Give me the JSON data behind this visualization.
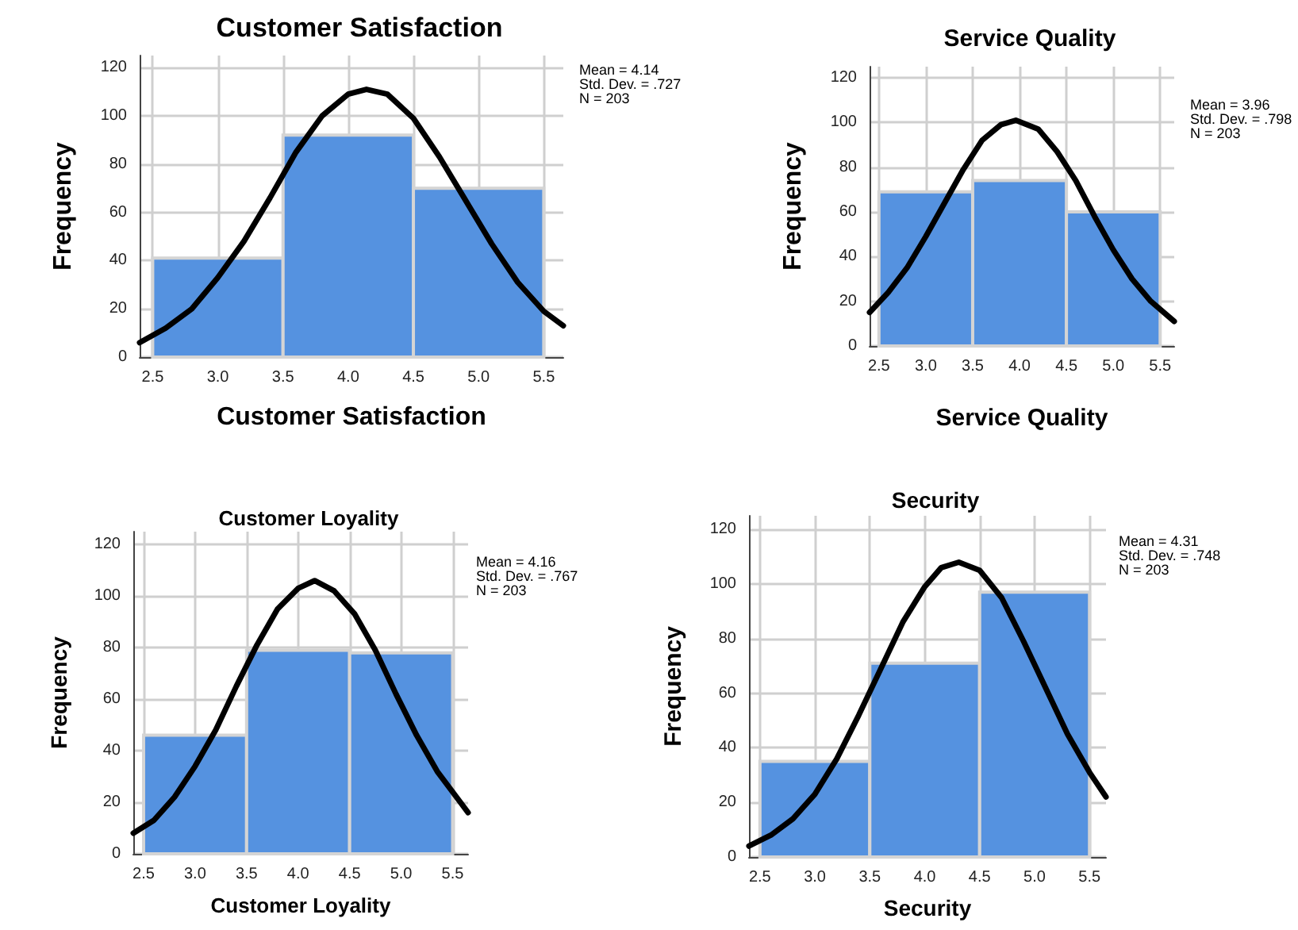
{
  "chart_data": [
    {
      "type": "histogram",
      "title": "Customer Satisfaction",
      "xlabel": "Customer Satisfaction",
      "ylabel": "Frequency",
      "bins": [
        2.5,
        3.5,
        4.5,
        5.5
      ],
      "xlim": [
        2.4,
        5.65
      ],
      "ylim": [
        0,
        125
      ],
      "xticks": [
        2.5,
        {
          "value": 3,
          "label": "3.0"
        },
        3.5,
        {
          "value": 4,
          "label": "4.0"
        },
        4.5,
        {
          "value": 5,
          "label": "5.0"
        },
        5.5
      ],
      "yticks": [
        0,
        20,
        40,
        60,
        80,
        100,
        120
      ],
      "grid": true,
      "marker": "none",
      "annotations": [
        "Mean = 4.14",
        "Std. Dev. = .727",
        "N = 203"
      ],
      "series": [
        {
          "color": "#5592e0",
          "values": [
            41,
            92,
            70
          ]
        },
        {
          "type": "line",
          "color": "#000000",
          "x": [
            2.4,
            2.6,
            2.8,
            3.0,
            3.2,
            3.4,
            3.6,
            3.8,
            4.0,
            4.14,
            4.3,
            4.5,
            4.7,
            4.9,
            5.1,
            5.3,
            5.5,
            5.65
          ],
          "values": [
            6,
            12,
            20,
            33,
            48,
            66,
            85,
            100,
            109,
            111,
            109,
            99,
            83,
            65,
            47,
            31,
            19,
            13
          ]
        }
      ]
    },
    {
      "type": "histogram",
      "title": "Service Quality",
      "xlabel": "Service Quality",
      "ylabel": "Frequency",
      "bins": [
        2.5,
        3.5,
        4.5,
        5.5
      ],
      "xlim": [
        2.4,
        5.65
      ],
      "ylim": [
        0,
        125
      ],
      "xticks": [
        2.5,
        {
          "value": 3,
          "label": "3.0"
        },
        3.5,
        {
          "value": 4,
          "label": "4.0"
        },
        4.5,
        {
          "value": 5,
          "label": "5.0"
        },
        5.5
      ],
      "yticks": [
        0,
        20,
        40,
        60,
        80,
        100,
        120
      ],
      "grid": true,
      "marker": "none",
      "annotations": [
        "Mean = 3.96",
        "Std. Dev. = .798",
        "N = 203"
      ],
      "series": [
        {
          "color": "#5592e0",
          "values": [
            69,
            74,
            60
          ]
        },
        {
          "type": "line",
          "color": "#000000",
          "x": [
            2.4,
            2.6,
            2.8,
            3.0,
            3.2,
            3.4,
            3.6,
            3.8,
            3.96,
            4.2,
            4.4,
            4.6,
            4.8,
            5.0,
            5.2,
            5.4,
            5.65
          ],
          "values": [
            15,
            24,
            35,
            49,
            64,
            79,
            92,
            99,
            101,
            97,
            87,
            74,
            58,
            43,
            30,
            20,
            11
          ]
        }
      ]
    },
    {
      "type": "histogram",
      "title": "Customer Loyality",
      "xlabel": "Customer Loyality",
      "ylabel": "Frequency",
      "bins": [
        2.5,
        3.5,
        4.5,
        5.5
      ],
      "xlim": [
        2.4,
        5.65
      ],
      "ylim": [
        0,
        125
      ],
      "xticks": [
        2.5,
        {
          "value": 3,
          "label": "3.0"
        },
        3.5,
        {
          "value": 4,
          "label": "4.0"
        },
        4.5,
        {
          "value": 5,
          "label": "5.0"
        },
        5.5
      ],
      "yticks": [
        0,
        20,
        40,
        60,
        80,
        100,
        120
      ],
      "grid": true,
      "marker": "none",
      "annotations": [
        "Mean = 4.16",
        "Std. Dev. = .767",
        "N = 203"
      ],
      "series": [
        {
          "color": "#5592e0",
          "values": [
            46,
            79,
            78
          ]
        },
        {
          "type": "line",
          "color": "#000000",
          "x": [
            2.4,
            2.6,
            2.8,
            3.0,
            3.2,
            3.4,
            3.6,
            3.8,
            4.0,
            4.16,
            4.35,
            4.55,
            4.75,
            4.95,
            5.15,
            5.35,
            5.65
          ],
          "values": [
            8,
            13,
            22,
            34,
            48,
            65,
            81,
            95,
            103,
            106,
            102,
            93,
            79,
            62,
            46,
            32,
            16
          ]
        }
      ]
    },
    {
      "type": "histogram",
      "title": "Security",
      "xlabel": "Security",
      "ylabel": "Frequency",
      "bins": [
        2.5,
        3.5,
        4.5,
        5.5
      ],
      "xlim": [
        2.4,
        5.65
      ],
      "ylim": [
        0,
        125
      ],
      "xticks": [
        2.5,
        {
          "value": 3,
          "label": "3.0"
        },
        3.5,
        {
          "value": 4,
          "label": "4.0"
        },
        4.5,
        {
          "value": 5,
          "label": "5.0"
        },
        5.5
      ],
      "yticks": [
        0,
        20,
        40,
        60,
        80,
        100,
        120
      ],
      "grid": true,
      "marker": "none",
      "annotations": [
        "Mean = 4.31",
        "Std. Dev. = .748",
        "N = 203"
      ],
      "series": [
        {
          "color": "#5592e0",
          "values": [
            35,
            71,
            97
          ]
        },
        {
          "type": "line",
          "color": "#000000",
          "x": [
            2.4,
            2.6,
            2.8,
            3.0,
            3.2,
            3.4,
            3.6,
            3.8,
            4.0,
            4.15,
            4.31,
            4.5,
            4.7,
            4.9,
            5.1,
            5.3,
            5.5,
            5.65
          ],
          "values": [
            4,
            8,
            14,
            23,
            36,
            52,
            69,
            86,
            99,
            106,
            108,
            105,
            95,
            79,
            62,
            45,
            31,
            22
          ]
        }
      ]
    }
  ]
}
